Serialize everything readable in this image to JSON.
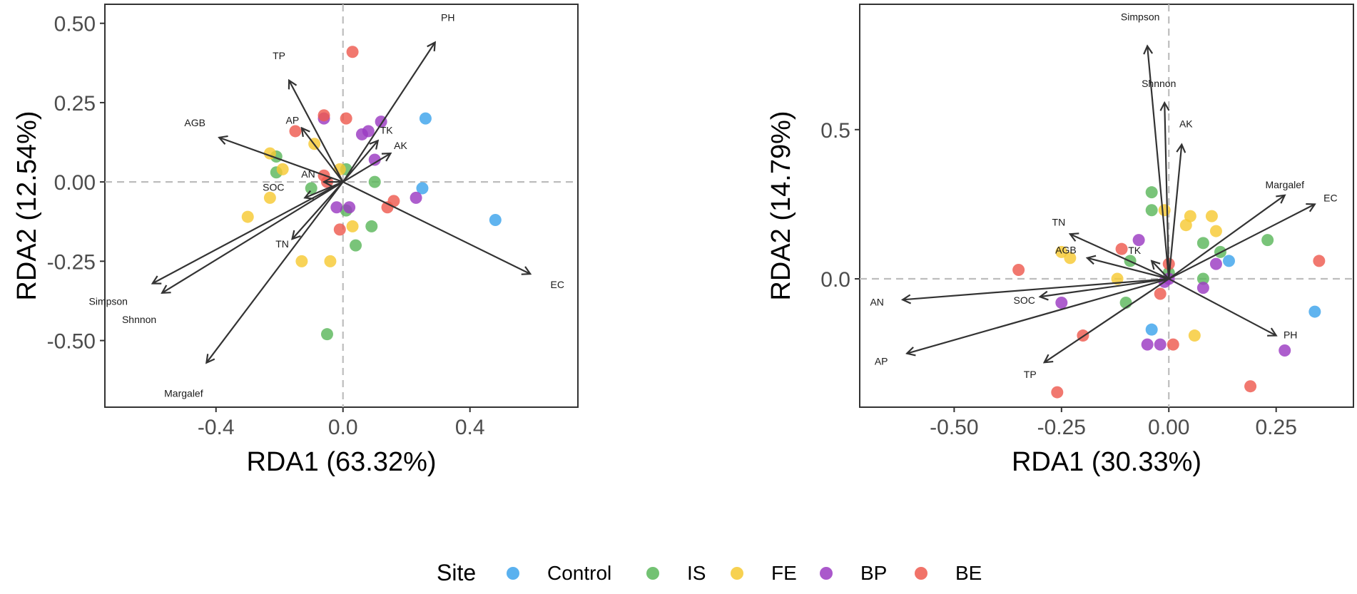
{
  "legend": {
    "title": "Site",
    "items": [
      {
        "label": "Control",
        "color": "#3DA3EC"
      },
      {
        "label": "IS",
        "color": "#5BB75B"
      },
      {
        "label": "FE",
        "color": "#F6C933"
      },
      {
        "label": "BP",
        "color": "#9B3BC2"
      },
      {
        "label": "BE",
        "color": "#EE5A4F"
      }
    ]
  },
  "chart_data": [
    {
      "type": "scatter",
      "xlabel": "RDA1 (63.32%)",
      "ylabel": "RDA2 (12.54%)",
      "xlim": [
        -0.75,
        0.74
      ],
      "ylim": [
        -0.71,
        0.56
      ],
      "xticks": [
        -0.4,
        0.0,
        0.4
      ],
      "xtick_labels": [
        "-0.4",
        "0.0",
        "0.4"
      ],
      "yticks": [
        -0.5,
        -0.25,
        0.0,
        0.25,
        0.5
      ],
      "ytick_labels": [
        "-0.50",
        "-0.25",
        "0.00",
        "0.25",
        "0.50"
      ],
      "reference_lines": {
        "x": 0,
        "y": 0
      },
      "vectors": [
        {
          "name": "PH",
          "x": 0.29,
          "y": 0.44
        },
        {
          "name": "TP",
          "x": -0.17,
          "y": 0.32
        },
        {
          "name": "AP",
          "x": -0.13,
          "y": 0.17
        },
        {
          "name": "AGB",
          "x": -0.39,
          "y": 0.14
        },
        {
          "name": "TK",
          "x": 0.11,
          "y": 0.13
        },
        {
          "name": "AK",
          "x": 0.15,
          "y": 0.09
        },
        {
          "name": "AN",
          "x": -0.06,
          "y": 0.0
        },
        {
          "name": "SOC",
          "x": -0.12,
          "y": -0.05
        },
        {
          "name": "TN",
          "x": -0.16,
          "y": -0.18
        },
        {
          "name": "EC",
          "x": 0.59,
          "y": -0.29
        },
        {
          "name": "Simpson",
          "x": -0.6,
          "y": -0.32
        },
        {
          "name": "Shnnon",
          "x": -0.57,
          "y": -0.35
        },
        {
          "name": "Margalef",
          "x": -0.43,
          "y": -0.57
        }
      ],
      "series": [
        {
          "name": "Control",
          "points": [
            [
              0.26,
              0.2
            ],
            [
              0.25,
              -0.02
            ],
            [
              0.48,
              -0.12
            ]
          ]
        },
        {
          "name": "IS",
          "points": [
            [
              -0.21,
              0.08
            ],
            [
              -0.21,
              0.03
            ],
            [
              0.01,
              0.04
            ],
            [
              -0.1,
              -0.02
            ],
            [
              0.1,
              0.0
            ],
            [
              0.01,
              -0.09
            ],
            [
              0.09,
              -0.14
            ],
            [
              0.04,
              -0.2
            ],
            [
              -0.05,
              -0.48
            ]
          ]
        },
        {
          "name": "FE",
          "points": [
            [
              -0.23,
              0.09
            ],
            [
              -0.19,
              0.04
            ],
            [
              -0.09,
              0.12
            ],
            [
              -0.01,
              0.04
            ],
            [
              -0.3,
              -0.11
            ],
            [
              -0.23,
              -0.05
            ],
            [
              0.03,
              -0.14
            ],
            [
              -0.13,
              -0.25
            ],
            [
              -0.04,
              -0.25
            ]
          ]
        },
        {
          "name": "BP",
          "points": [
            [
              -0.06,
              0.2
            ],
            [
              0.12,
              0.19
            ],
            [
              0.06,
              0.15
            ],
            [
              0.08,
              0.16
            ],
            [
              0.1,
              0.07
            ],
            [
              -0.02,
              -0.08
            ],
            [
              0.02,
              -0.08
            ],
            [
              0.23,
              -0.05
            ]
          ]
        },
        {
          "name": "BE",
          "points": [
            [
              0.03,
              0.41
            ],
            [
              -0.06,
              0.21
            ],
            [
              0.01,
              0.2
            ],
            [
              -0.15,
              0.16
            ],
            [
              -0.06,
              0.02
            ],
            [
              -0.05,
              0.0
            ],
            [
              0.16,
              -0.06
            ],
            [
              0.14,
              -0.08
            ],
            [
              -0.01,
              -0.15
            ]
          ]
        }
      ]
    },
    {
      "type": "scatter",
      "xlabel": "RDA1 (30.33%)",
      "ylabel": "RDA2 (14.79%)",
      "xlim": [
        -0.72,
        0.43
      ],
      "ylim": [
        -0.43,
        0.92
      ],
      "xticks": [
        -0.5,
        -0.25,
        0.0,
        0.25
      ],
      "xtick_labels": [
        "-0.50",
        "-0.25",
        "0.00",
        "0.25"
      ],
      "yticks": [
        0.0,
        0.5
      ],
      "ytick_labels": [
        "0.0",
        "0.5"
      ],
      "reference_lines": {
        "x": 0,
        "y": 0
      },
      "vectors": [
        {
          "name": "Simpson",
          "x": -0.05,
          "y": 0.78
        },
        {
          "name": "Shnnon",
          "x": -0.01,
          "y": 0.59
        },
        {
          "name": "AK",
          "x": 0.03,
          "y": 0.45
        },
        {
          "name": "Margalef",
          "x": 0.27,
          "y": 0.28
        },
        {
          "name": "EC",
          "x": 0.34,
          "y": 0.25
        },
        {
          "name": "TN",
          "x": -0.23,
          "y": 0.15
        },
        {
          "name": "TK",
          "x": -0.04,
          "y": 0.06
        },
        {
          "name": "AGB",
          "x": -0.19,
          "y": 0.07
        },
        {
          "name": "AN",
          "x": -0.62,
          "y": -0.07
        },
        {
          "name": "SOC",
          "x": -0.3,
          "y": -0.06
        },
        {
          "name": "AP",
          "x": -0.61,
          "y": -0.25
        },
        {
          "name": "TP",
          "x": -0.29,
          "y": -0.28
        },
        {
          "name": "PH",
          "x": 0.25,
          "y": -0.19
        }
      ],
      "series": [
        {
          "name": "Control",
          "points": [
            [
              0.14,
              0.06
            ],
            [
              -0.04,
              -0.17
            ],
            [
              0.34,
              -0.11
            ]
          ]
        },
        {
          "name": "IS",
          "points": [
            [
              -0.04,
              0.29
            ],
            [
              -0.04,
              0.23
            ],
            [
              0.23,
              0.13
            ],
            [
              0.08,
              0.12
            ],
            [
              0.12,
              0.09
            ],
            [
              -0.09,
              0.06
            ],
            [
              0.0,
              0.02
            ],
            [
              0.08,
              0.0
            ],
            [
              -0.1,
              -0.08
            ]
          ]
        },
        {
          "name": "FE",
          "points": [
            [
              -0.01,
              0.23
            ],
            [
              0.05,
              0.21
            ],
            [
              0.1,
              0.21
            ],
            [
              0.04,
              0.18
            ],
            [
              0.11,
              0.16
            ],
            [
              -0.25,
              0.09
            ],
            [
              -0.23,
              0.07
            ],
            [
              -0.12,
              0.0
            ],
            [
              0.06,
              -0.19
            ]
          ]
        },
        {
          "name": "BP",
          "points": [
            [
              -0.07,
              0.13
            ],
            [
              0.11,
              0.05
            ],
            [
              0.08,
              -0.03
            ],
            [
              -0.01,
              -0.01
            ],
            [
              0.0,
              0.0
            ],
            [
              -0.25,
              -0.08
            ],
            [
              -0.05,
              -0.22
            ],
            [
              -0.02,
              -0.22
            ],
            [
              0.27,
              -0.24
            ]
          ]
        },
        {
          "name": "BE",
          "points": [
            [
              -0.35,
              0.03
            ],
            [
              -0.11,
              0.1
            ],
            [
              0.0,
              0.05
            ],
            [
              -0.02,
              -0.05
            ],
            [
              0.01,
              -0.22
            ],
            [
              -0.2,
              -0.19
            ],
            [
              0.35,
              0.06
            ],
            [
              0.19,
              -0.36
            ],
            [
              -0.26,
              -0.38
            ]
          ]
        }
      ]
    }
  ]
}
